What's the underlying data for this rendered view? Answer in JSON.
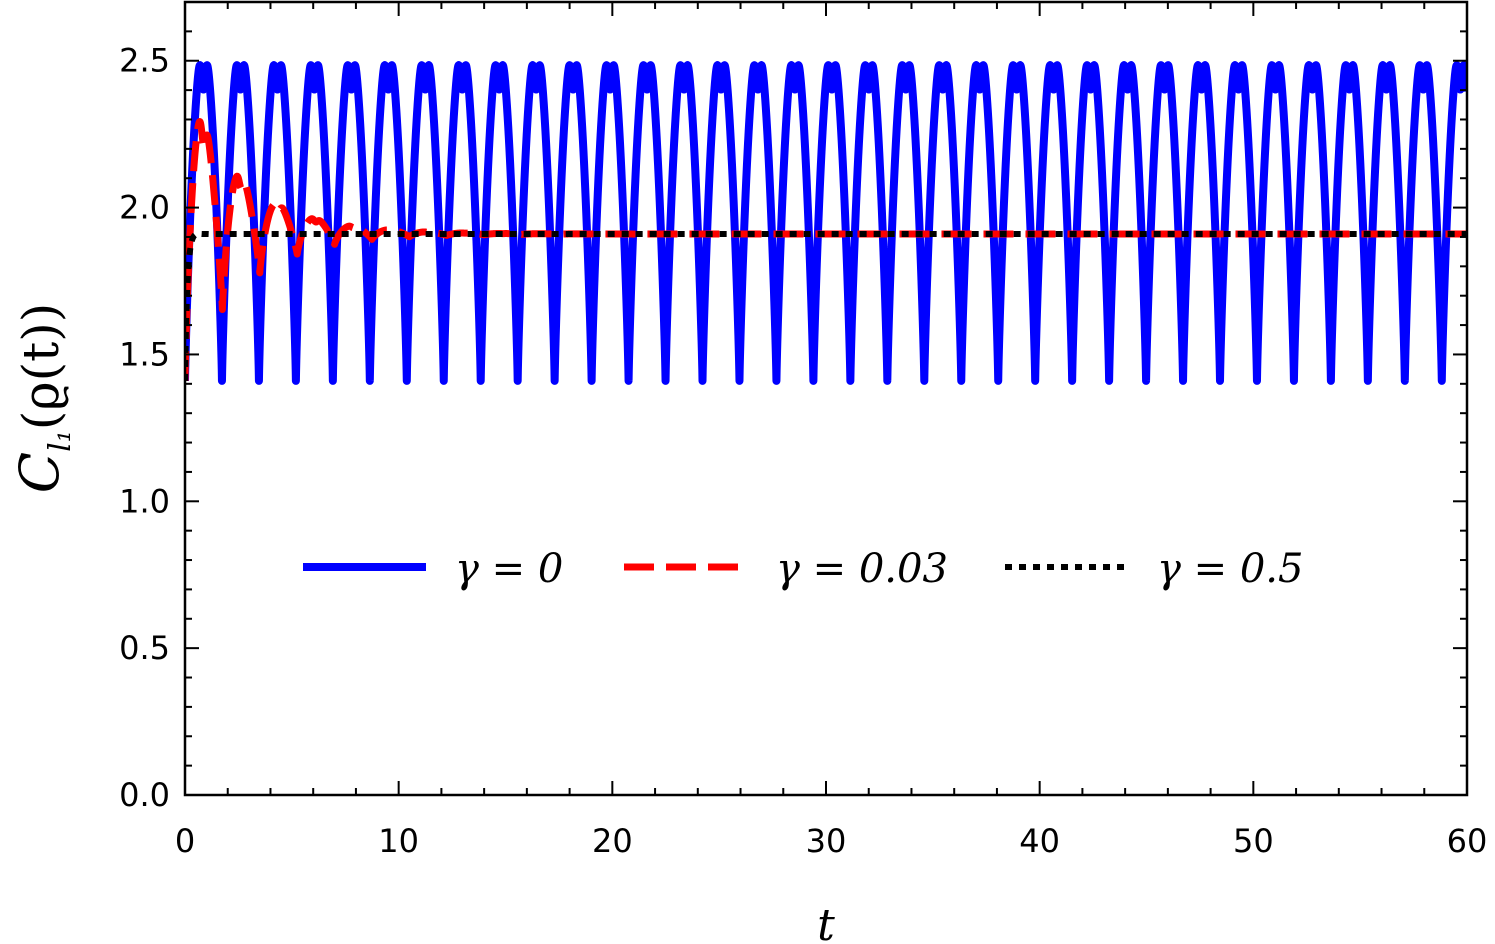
{
  "chart_data": {
    "type": "line",
    "title": "",
    "xlabel": "t",
    "ylabel": "C_{l_1}(ϱ(t))",
    "ylabel_main": "C",
    "ylabel_sub": "l₁",
    "ylabel_arg": "(ϱ(t))",
    "xlim": [
      0,
      60
    ],
    "ylim": [
      0,
      2.7
    ],
    "x_ticks": [
      "0",
      "10",
      "20",
      "30",
      "40",
      "50",
      "60"
    ],
    "y_ticks": [
      "0.0",
      "0.5",
      "1.0",
      "1.5",
      "2.0",
      "2.5"
    ],
    "grid": false,
    "legend_position": "center",
    "series": [
      {
        "name": "γ = 0",
        "color": "#0000ff",
        "style": "solid",
        "baseline": 1.41,
        "peak": 2.55,
        "period": 1.73,
        "decay": 0,
        "steady": 1.91
      },
      {
        "name": "γ = 0.03",
        "color": "#ff0000",
        "style": "dashed",
        "baseline": 1.41,
        "peak": 2.47,
        "period": 1.75,
        "decay": 0.38,
        "steady": 1.91
      },
      {
        "name": "γ = 0.5",
        "color": "#000000",
        "style": "dotted",
        "baseline": 1.41,
        "peak": 1.98,
        "period": 1.75,
        "decay": 6,
        "steady": 1.91
      }
    ]
  }
}
